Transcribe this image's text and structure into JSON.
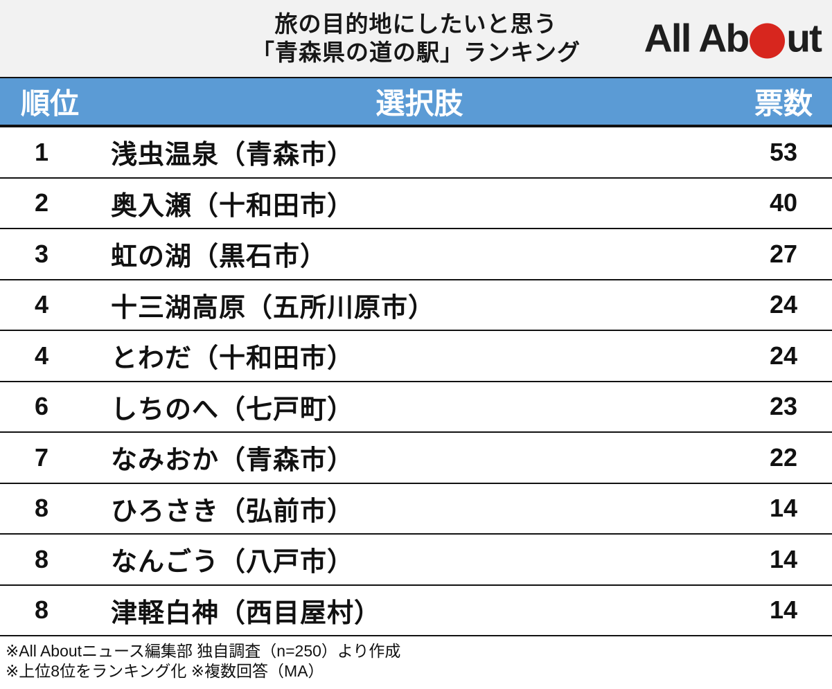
{
  "header": {
    "title_line1": "旅の目的地にしたいと思う",
    "title_line2": "「青森県の道の駅」ランキング",
    "logo": {
      "part1": "All Ab",
      "part2": "ut"
    }
  },
  "table": {
    "columns": {
      "rank": "順位",
      "choice": "選択肢",
      "votes": "票数"
    },
    "rows": [
      {
        "rank": "1",
        "choice": "浅虫温泉（青森市）",
        "votes": "53"
      },
      {
        "rank": "2",
        "choice": "奥入瀬（十和田市）",
        "votes": "40"
      },
      {
        "rank": "3",
        "choice": "虹の湖（黒石市）",
        "votes": "27"
      },
      {
        "rank": "4",
        "choice": "十三湖高原（五所川原市）",
        "votes": "24"
      },
      {
        "rank": "4",
        "choice": "とわだ（十和田市）",
        "votes": "24"
      },
      {
        "rank": "6",
        "choice": "しちのへ（七戸町）",
        "votes": "23"
      },
      {
        "rank": "7",
        "choice": "なみおか（青森市）",
        "votes": "22"
      },
      {
        "rank": "8",
        "choice": "ひろさき（弘前市）",
        "votes": "14"
      },
      {
        "rank": "8",
        "choice": "なんごう（八戸市）",
        "votes": "14"
      },
      {
        "rank": "8",
        "choice": "津軽白神（西目屋村）",
        "votes": "14"
      }
    ]
  },
  "footer": {
    "note1": "※All Aboutニュース編集部 独自調査（n=250）より作成",
    "note2": "※上位8位をランキング化 ※複数回答（MA）"
  },
  "colors": {
    "table_header_bg": "#5B9BD5",
    "title_strip_bg": "#F2F2F2",
    "logo_red": "#D7261E",
    "text": "#111111"
  },
  "chart_data": {
    "type": "table",
    "title": "旅の目的地にしたいと思う「青森県の道の駅」ランキング",
    "columns": [
      "順位",
      "選択肢",
      "票数"
    ],
    "categories": [
      "浅虫温泉（青森市）",
      "奥入瀬（十和田市）",
      "虹の湖（黒石市）",
      "十三湖高原（五所川原市）",
      "とわだ（十和田市）",
      "しちのへ（七戸町）",
      "なみおか（青森市）",
      "ひろさき（弘前市）",
      "なんごう（八戸市）",
      "津軽白神（西目屋村）"
    ],
    "ranks": [
      1,
      2,
      3,
      4,
      4,
      6,
      7,
      8,
      8,
      8
    ],
    "values": [
      53,
      40,
      27,
      24,
      24,
      23,
      22,
      14,
      14,
      14
    ],
    "notes": [
      "※All Aboutニュース編集部 独自調査（n=250）より作成",
      "※上位8位をランキング化 ※複数回答（MA）"
    ]
  }
}
